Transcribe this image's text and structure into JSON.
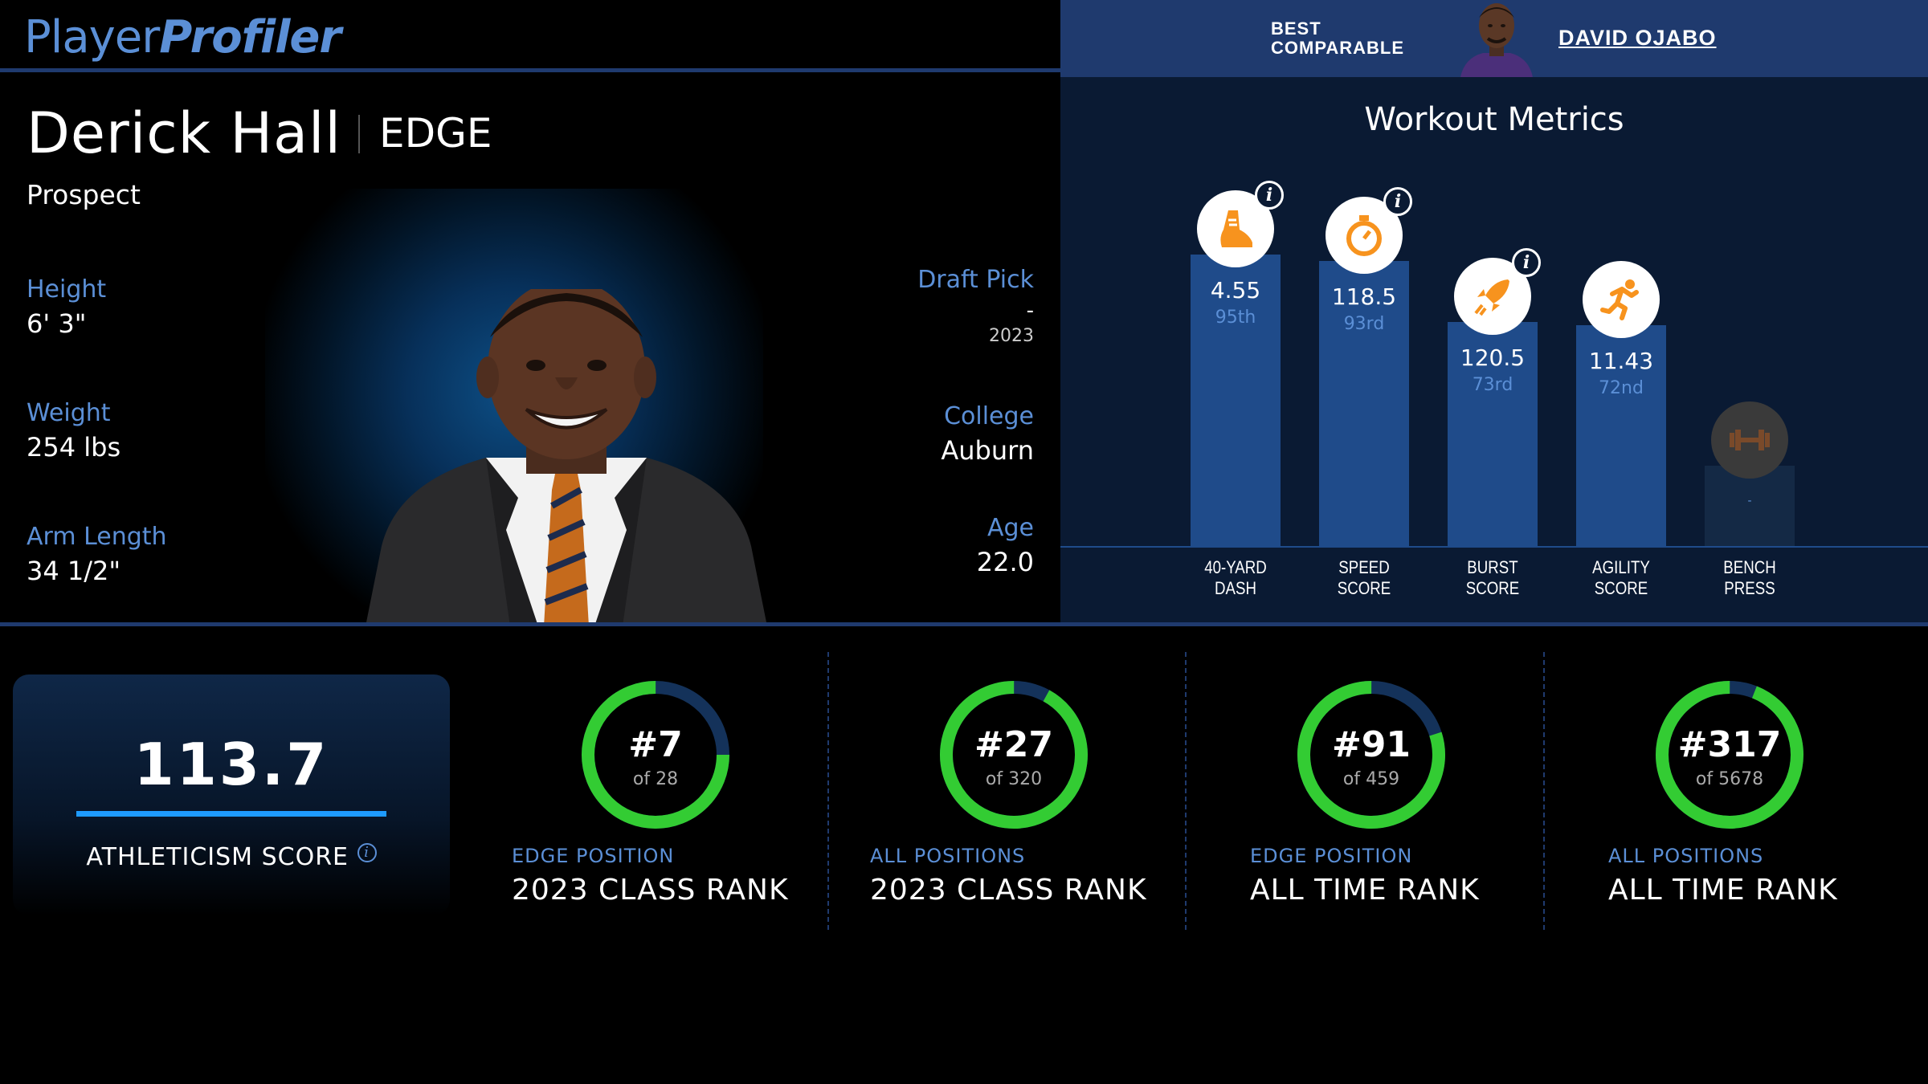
{
  "brand": {
    "part1": "Player",
    "part2": "Profiler"
  },
  "best_comparable": {
    "label_line1": "BEST",
    "label_line2": "COMPARABLE",
    "name": "DAVID OJABO"
  },
  "player": {
    "name": "Derick Hall",
    "position": "EDGE",
    "status": "Prospect",
    "height": {
      "label": "Height",
      "value": "6' 3\""
    },
    "weight": {
      "label": "Weight",
      "value": "254 lbs"
    },
    "arm_length": {
      "label": "Arm Length",
      "value": "34 1/2\""
    },
    "draft_pick": {
      "label": "Draft Pick",
      "value": "-",
      "year": "2023"
    },
    "college": {
      "label": "College",
      "value": "Auburn"
    },
    "age": {
      "label": "Age",
      "value": "22.0"
    }
  },
  "workout": {
    "title": "Workout Metrics",
    "metrics": [
      {
        "label1": "40-YARD",
        "label2": "DASH",
        "value": "4.55",
        "percentile": "95th",
        "pct": 95,
        "icon": "shoe-icon",
        "info": "i"
      },
      {
        "label1": "SPEED",
        "label2": "SCORE",
        "value": "118.5",
        "percentile": "93rd",
        "pct": 93,
        "icon": "stopwatch-icon",
        "info": "i"
      },
      {
        "label1": "BURST",
        "label2": "SCORE",
        "value": "120.5",
        "percentile": "73rd",
        "pct": 73,
        "icon": "rocket-icon",
        "info": "i"
      },
      {
        "label1": "AGILITY",
        "label2": "SCORE",
        "value": "11.43",
        "percentile": "72nd",
        "pct": 72,
        "icon": "runner-icon",
        "info": ""
      },
      {
        "label1": "BENCH",
        "label2": "PRESS",
        "value": "",
        "percentile": "-",
        "pct": null,
        "icon": "dumbbell-icon",
        "info": ""
      }
    ]
  },
  "athleticism": {
    "score": "113.7",
    "label": "ATHLETICISM SCORE",
    "info": "i"
  },
  "ranks": [
    {
      "num": "#7",
      "of": "of 28",
      "sub": "EDGE POSITION",
      "main": "2023 CLASS RANK",
      "fraction": 0.75
    },
    {
      "num": "#27",
      "of": "of 320",
      "sub": "ALL POSITIONS",
      "main": "2023 CLASS RANK",
      "fraction": 0.92
    },
    {
      "num": "#91",
      "of": "of 459",
      "sub": "EDGE POSITION",
      "main": "ALL TIME RANK",
      "fraction": 0.8
    },
    {
      "num": "#317",
      "of": "of 5678",
      "sub": "ALL POSITIONS",
      "main": "ALL TIME RANK",
      "fraction": 0.94
    }
  ],
  "colors": {
    "accent": "#5b8fd6",
    "navy": "#1f3a6e",
    "bar": "#1f4b8a",
    "ring": "#33cc33",
    "ring_track": "#14325a",
    "icon": "#f7931e"
  }
}
